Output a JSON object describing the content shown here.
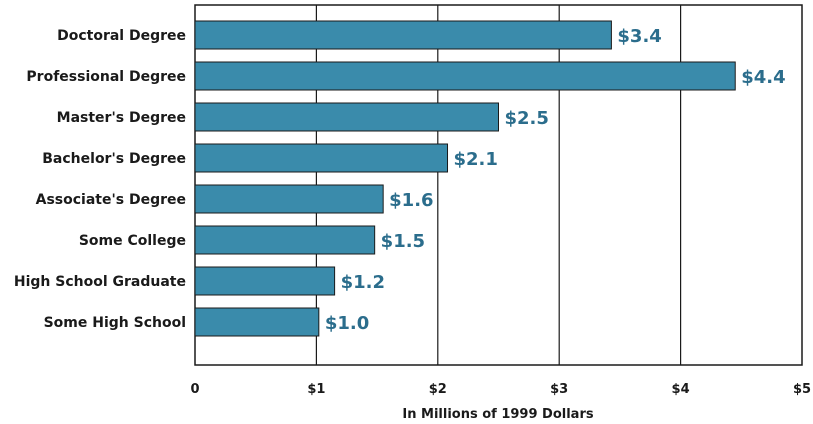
{
  "chart_data": {
    "type": "bar",
    "orientation": "horizontal",
    "categories": [
      "Doctoral Degree",
      "Professional Degree",
      "Master's Degree",
      "Bachelor's Degree",
      "Associate's Degree",
      "Some College",
      "High School Graduate",
      "Some High School"
    ],
    "values": [
      3.43,
      4.45,
      2.5,
      2.08,
      1.55,
      1.48,
      1.15,
      1.02
    ],
    "value_labels": [
      "$3.4",
      "$4.4",
      "$2.5",
      "$2.1",
      "$1.6",
      "$1.5",
      "$1.2",
      "$1.0"
    ],
    "xticks": [
      0,
      1,
      2,
      3,
      4,
      5
    ],
    "xtick_labels": [
      "0",
      "$1",
      "$2",
      "$3",
      "$4",
      "$5"
    ],
    "xlabel": "In Millions of 1999 Dollars",
    "xlim": [
      0,
      5
    ],
    "grid": "vertical",
    "colors": {
      "bar": "#3a8bab",
      "bar_edge": "#1a1a1a",
      "value_label": "#2b6d8c",
      "grid": "#1a1a1a"
    }
  }
}
